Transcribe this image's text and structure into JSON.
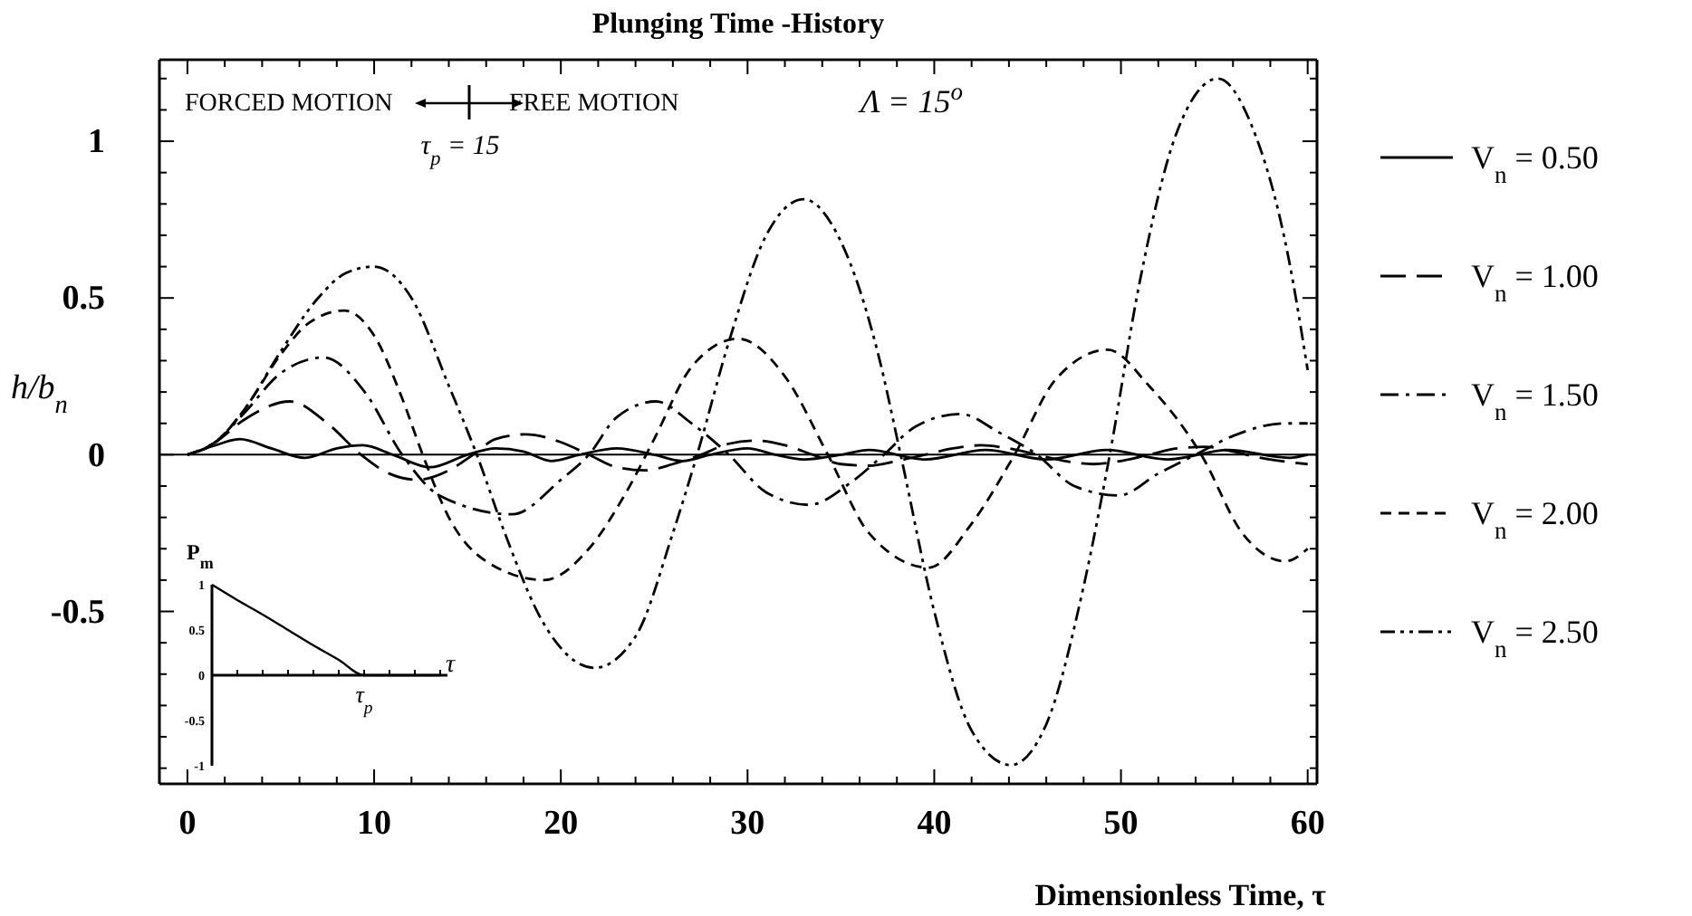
{
  "chart_data": [
    {
      "type": "line",
      "title": "Plunging Time -History",
      "xlabel": "Dimensionless Time, τ",
      "ylabel": "h/b$_{n}$",
      "annotations": [
        "FORCED MOTION",
        "FREE MOTION",
        "τ$_{p}$ = 15",
        "Λ = 15$^{o}$"
      ],
      "xlim": [
        -1.5,
        60.5
      ],
      "ylim": [
        -1.05,
        1.26
      ],
      "xticks": [
        0,
        {
          "value": 2,
          "label": null
        },
        {
          "value": 4,
          "label": null
        },
        {
          "value": 6,
          "label": null
        },
        {
          "value": 8,
          "label": null
        },
        10,
        {
          "value": 12,
          "label": null
        },
        {
          "value": 14,
          "label": null
        },
        {
          "value": 16,
          "label": null
        },
        {
          "value": 18,
          "label": null
        },
        20,
        {
          "value": 22,
          "label": null
        },
        {
          "value": 24,
          "label": null
        },
        {
          "value": 26,
          "label": null
        },
        {
          "value": 28,
          "label": null
        },
        30,
        {
          "value": 32,
          "label": null
        },
        {
          "value": 34,
          "label": null
        },
        {
          "value": 36,
          "label": null
        },
        {
          "value": 38,
          "label": null
        },
        40,
        {
          "value": 42,
          "label": null
        },
        {
          "value": 44,
          "label": null
        },
        {
          "value": 46,
          "label": null
        },
        {
          "value": 48,
          "label": null
        },
        50,
        {
          "value": 52,
          "label": null
        },
        {
          "value": 54,
          "label": null
        },
        {
          "value": 56,
          "label": null
        },
        {
          "value": 58,
          "label": null
        },
        60
      ],
      "yticks": [
        {
          "value": -1,
          "label": null
        },
        {
          "value": -0.9,
          "label": null
        },
        {
          "value": -0.8,
          "label": null
        },
        {
          "value": -0.7,
          "label": null
        },
        {
          "value": -0.6,
          "label": null
        },
        -0.5,
        {
          "value": -0.4,
          "label": null
        },
        {
          "value": -0.3,
          "label": null
        },
        {
          "value": -0.2,
          "label": null
        },
        {
          "value": -0.1,
          "label": null
        },
        0,
        {
          "value": 0.1,
          "label": null
        },
        {
          "value": 0.2,
          "label": null
        },
        {
          "value": 0.3,
          "label": null
        },
        {
          "value": 0.4,
          "label": null
        },
        0.5,
        {
          "value": 0.6,
          "label": null
        },
        {
          "value": 0.7,
          "label": null
        },
        {
          "value": 0.8,
          "label": null
        },
        {
          "value": 0.9,
          "label": null
        },
        1,
        {
          "value": 1.1,
          "label": null
        },
        {
          "value": 1.2,
          "label": null
        }
      ],
      "grid": false,
      "legend": "right",
      "marker": "none",
      "ref_lines": [
        {
          "axis": "y",
          "value": 0,
          "label": null,
          "color": "#000000",
          "line_style": "solid"
        }
      ],
      "series": [
        {
          "name": "V$_{n}$ = 0.50",
          "color": "#000000",
          "line_style": "solid",
          "x": [
            0,
            1.5,
            2.8,
            4.5,
            6.3,
            8,
            9.4,
            11,
            13,
            15,
            16.5,
            18,
            19.5,
            21,
            23,
            25,
            26.5,
            28,
            30,
            31.5,
            33,
            35,
            36.5,
            39.5,
            42.75,
            46,
            49.25,
            52.5,
            55.75,
            59,
            60
          ],
          "values": [
            0,
            0.03,
            0.05,
            0.02,
            -0.01,
            0.02,
            0.03,
            0,
            -0.04,
            0,
            0.02,
            0.01,
            -0.02,
            0,
            0.02,
            0,
            -0.02,
            0,
            0.02,
            0,
            -0.015,
            0,
            0.015,
            -0.015,
            0.015,
            -0.015,
            0.015,
            -0.015,
            0.015,
            -0.01,
            0
          ]
        },
        {
          "name": "V$_{n}$ = 1.00",
          "color": "#000000",
          "line_style": "longdash",
          "x": [
            0,
            1.5,
            3,
            5.5,
            7.5,
            9.3,
            10.8,
            12.3,
            14,
            15.3,
            16.5,
            18.1,
            20,
            21.5,
            23,
            24.5,
            26,
            27.5,
            29,
            30.5,
            32,
            33.5,
            35,
            36.5,
            38,
            39.5,
            41,
            42.5,
            44,
            45.5,
            47,
            48.5,
            50,
            51.5,
            53,
            54.5,
            56,
            57.5,
            60
          ],
          "values": [
            0,
            0.04,
            0.11,
            0.17,
            0.1,
            0,
            -0.06,
            -0.08,
            -0.05,
            0,
            0.05,
            0.065,
            0.04,
            0,
            -0.04,
            -0.05,
            -0.03,
            0,
            0.035,
            0.045,
            0.03,
            0,
            -0.03,
            -0.035,
            -0.02,
            0,
            0.02,
            0.03,
            0.02,
            0,
            -0.02,
            -0.03,
            -0.02,
            0,
            0.02,
            0.025,
            0.01,
            -0.01,
            -0.03
          ]
        },
        {
          "name": "V$_{n}$ = 1.50",
          "color": "#000000",
          "line_style": "dashdot",
          "x": [
            0,
            1.5,
            3,
            5,
            7.3,
            9.5,
            11.5,
            13.5,
            17.4,
            20,
            21.5,
            23,
            25.1,
            27,
            29,
            31,
            33.3,
            35.5,
            37.3,
            39,
            41.4,
            43.5,
            45.5,
            47.5,
            49.9,
            52,
            54,
            56,
            58.8,
            60
          ],
          "values": [
            0,
            0.04,
            0.13,
            0.26,
            0.31,
            0.2,
            0,
            -0.13,
            -0.19,
            -0.08,
            0,
            0.12,
            0.17,
            0.1,
            0,
            -0.12,
            -0.16,
            -0.09,
            0,
            0.09,
            0.13,
            0.07,
            0,
            -0.1,
            -0.13,
            -0.06,
            0,
            0.06,
            0.1,
            0.1
          ]
        },
        {
          "name": "V$_{n}$ = 2.00",
          "color": "#000000",
          "line_style": "dashed",
          "x": [
            0,
            1.5,
            3,
            5,
            6.5,
            8.4,
            10,
            11.5,
            12.6,
            14,
            16,
            19.1,
            21.5,
            23.5,
            25,
            27,
            29.5,
            32,
            34.3,
            36.5,
            39.7,
            42,
            44.3,
            46.5,
            49.3,
            51.5,
            54.3,
            56.5,
            58.8,
            60
          ],
          "values": [
            0,
            0.04,
            0.14,
            0.32,
            0.42,
            0.46,
            0.38,
            0.18,
            0,
            -0.2,
            -0.34,
            -0.4,
            -0.3,
            -0.12,
            0.05,
            0.28,
            0.37,
            0.25,
            0,
            -0.25,
            -0.36,
            -0.22,
            0,
            0.24,
            0.335,
            0.22,
            0,
            -0.25,
            -0.34,
            -0.3
          ]
        },
        {
          "name": "V$_{n}$ = 2.50",
          "color": "#000000",
          "line_style": "dashdotdot",
          "x": [
            0,
            1.5,
            3,
            5,
            7,
            8.5,
            10,
            12,
            14,
            15.5,
            17,
            19,
            21.8,
            24,
            26,
            27.3,
            29,
            31,
            33,
            35,
            37,
            38.2,
            40,
            42,
            44.1,
            46,
            48,
            49.4,
            51,
            53,
            55.2,
            57,
            59,
            60
          ],
          "values": [
            0,
            0.04,
            0.14,
            0.33,
            0.5,
            0.58,
            0.6,
            0.5,
            0.22,
            0,
            -0.25,
            -0.53,
            -0.68,
            -0.58,
            -0.25,
            0,
            0.36,
            0.7,
            0.815,
            0.68,
            0.32,
            0,
            -0.5,
            -0.88,
            -0.99,
            -0.86,
            -0.42,
            0,
            0.55,
            1.03,
            1.2,
            1.05,
            0.62,
            0.27
          ]
        }
      ]
    },
    {
      "type": "line",
      "xlabel": "τ",
      "ylabel": "P$_{m}$",
      "annotations": [
        "τ$_{p}$"
      ],
      "categories": [
        null,
        null,
        null,
        null,
        null,
        null,
        null,
        null,
        null,
        null
      ],
      "ylim": [
        -1,
        1
      ],
      "yticks": [
        -1,
        -0.5,
        0,
        0.5,
        1
      ],
      "legend": false,
      "marker": "none",
      "series": [
        {
          "color": "#000000",
          "line_style": "solid",
          "values": [
            1,
            0.83,
            0.67,
            0.5,
            0.33,
            0.17,
            0,
            0,
            0,
            0
          ]
        }
      ]
    }
  ]
}
